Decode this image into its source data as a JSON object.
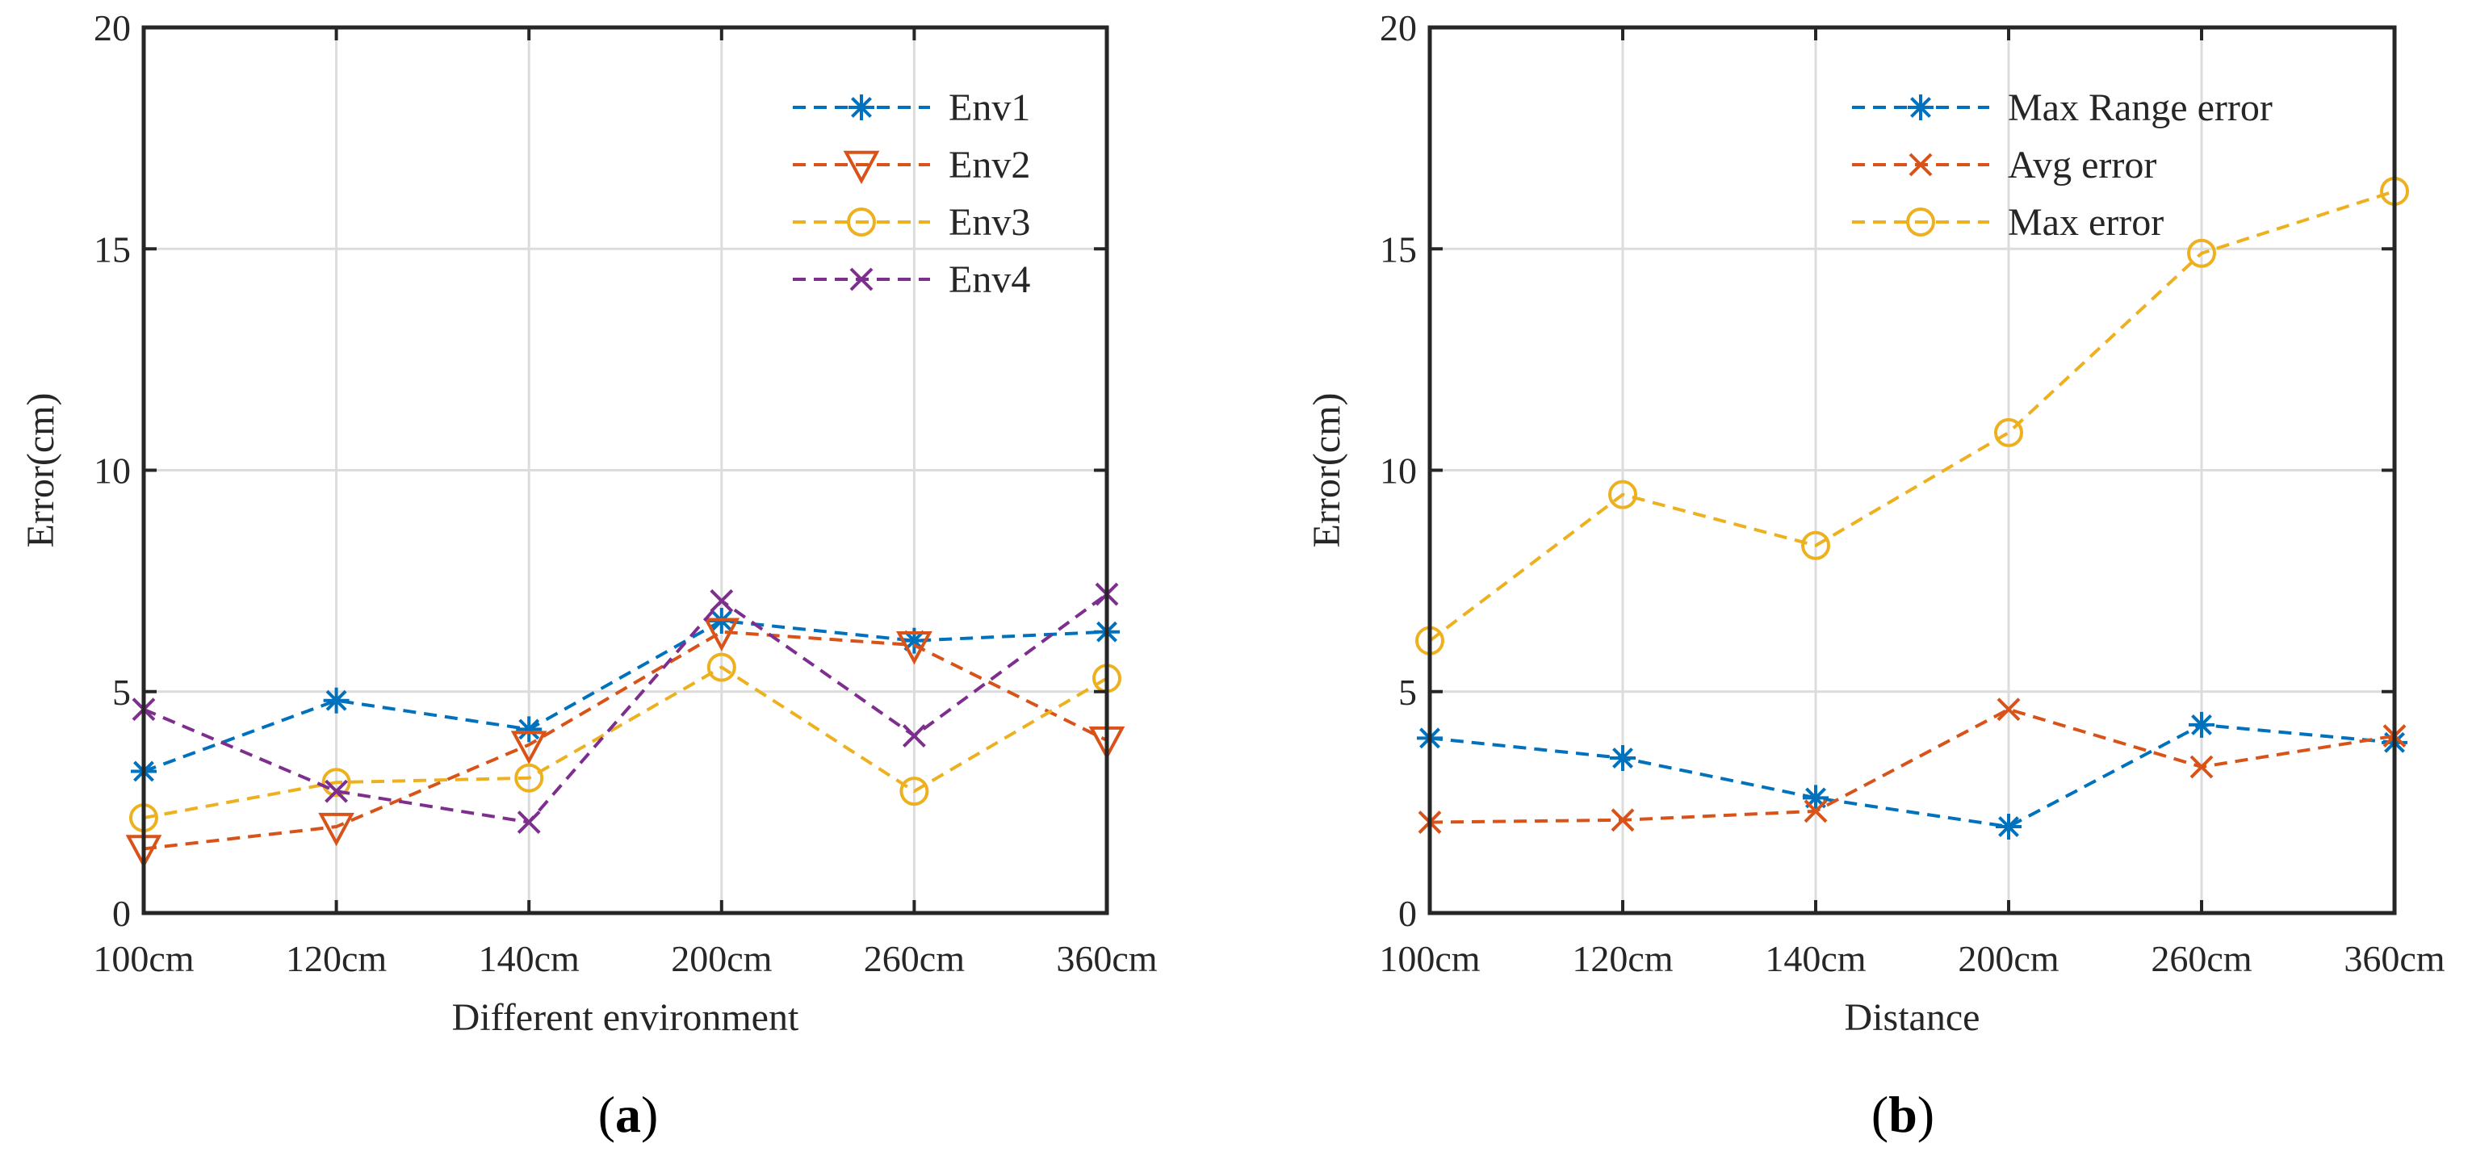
{
  "chart_data": [
    {
      "type": "line",
      "panel_label_open": "(",
      "panel_label_letter": "a",
      "panel_label_close": ")",
      "title": "",
      "xlabel": "Different environment",
      "ylabel": "Error(cm)",
      "categories": [
        "100cm",
        "120cm",
        "140cm",
        "200cm",
        "260cm",
        "360cm"
      ],
      "ylim": [
        0,
        20
      ],
      "yticks": [
        0,
        5,
        10,
        15,
        20
      ],
      "grid": true,
      "legend_position": "top-right",
      "series": [
        {
          "name": "Env1",
          "marker": "asterisk",
          "color": "#0072BD",
          "values": [
            3.2,
            4.8,
            4.15,
            6.6,
            6.15,
            6.35
          ]
        },
        {
          "name": "Env2",
          "marker": "triangle-down",
          "color": "#D95319",
          "values": [
            1.45,
            1.95,
            3.8,
            6.35,
            6.05,
            3.9
          ]
        },
        {
          "name": "Env3",
          "marker": "circle",
          "color": "#EDB120",
          "values": [
            2.15,
            2.95,
            3.05,
            5.55,
            2.75,
            5.3
          ]
        },
        {
          "name": "Env4",
          "marker": "cross",
          "color": "#7E2F8E",
          "values": [
            4.6,
            2.75,
            2.05,
            7.05,
            4.0,
            7.2
          ]
        }
      ]
    },
    {
      "type": "line",
      "panel_label_open": "(",
      "panel_label_letter": "b",
      "panel_label_close": ")",
      "title": "",
      "xlabel": "Distance",
      "ylabel": "Error(cm)",
      "categories": [
        "100cm",
        "120cm",
        "140cm",
        "200cm",
        "260cm",
        "360cm"
      ],
      "ylim": [
        0,
        20
      ],
      "yticks": [
        0,
        5,
        10,
        15,
        20
      ],
      "grid": true,
      "legend_position": "top-right",
      "series": [
        {
          "name": "Max Range error",
          "marker": "asterisk",
          "color": "#0072BD",
          "values": [
            3.95,
            3.5,
            2.6,
            1.95,
            4.25,
            3.85
          ]
        },
        {
          "name": "Avg error",
          "marker": "cross",
          "color": "#D95319",
          "values": [
            2.05,
            2.1,
            2.3,
            4.6,
            3.3,
            4.0
          ]
        },
        {
          "name": "Max error",
          "marker": "circle",
          "color": "#EDB120",
          "values": [
            6.15,
            9.45,
            8.3,
            10.85,
            14.9,
            16.3
          ]
        }
      ]
    }
  ]
}
